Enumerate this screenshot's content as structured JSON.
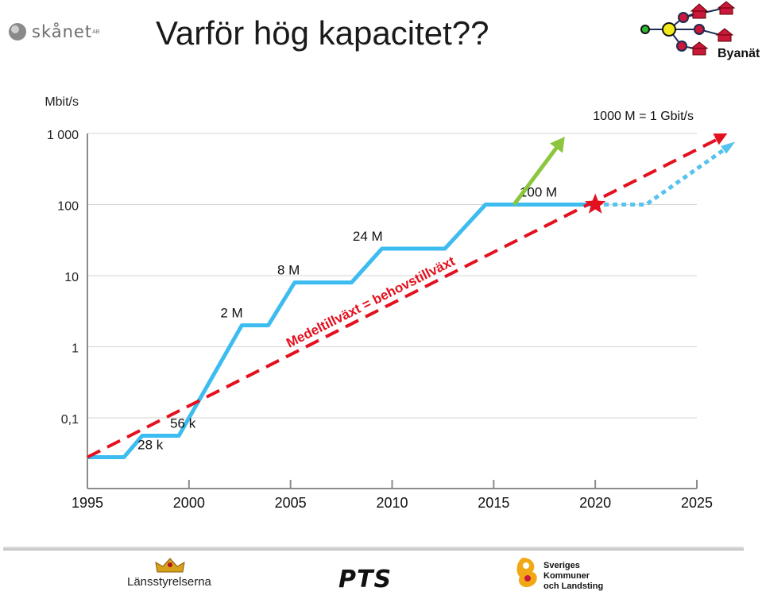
{
  "slide": {
    "title": "Varför hög kapacitet??",
    "logo_text": "skånet",
    "logo_sup": "AB",
    "byanat_label": "Byanät"
  },
  "chart_data": {
    "type": "line",
    "ylabel": "Mbit/s",
    "yscale": "log",
    "ylim": [
      0.03,
      1000
    ],
    "xlim": [
      1995,
      2026
    ],
    "y_ticks": [
      {
        "value": 1000,
        "label": "1 000"
      },
      {
        "value": 100,
        "label": "100"
      },
      {
        "value": 10,
        "label": "10"
      },
      {
        "value": 1,
        "label": "1"
      },
      {
        "value": 0.1,
        "label": "0,1"
      }
    ],
    "x_ticks": [
      {
        "value": 1995,
        "label": "1995"
      },
      {
        "value": 2000,
        "label": "2000"
      },
      {
        "value": 2005,
        "label": "2005"
      },
      {
        "value": 2010,
        "label": "2010"
      },
      {
        "value": 2015,
        "label": "2015"
      },
      {
        "value": 2020,
        "label": "2020"
      },
      {
        "value": 2025,
        "label": "2025"
      }
    ],
    "annotations": {
      "gbit_note": "1000 M = 1 Gbit/s",
      "trend_label": "Medeltillväxt = behovstillväxt"
    },
    "series": [
      {
        "style": "solid",
        "color": "#3dbcf0",
        "points": [
          {
            "x": 1995,
            "y": 0.028
          },
          {
            "x": 1996.8,
            "y": 0.028
          },
          {
            "x": 1997.7,
            "y": 0.056
          },
          {
            "x": 1999.5,
            "y": 0.056
          },
          {
            "x": 2002.6,
            "y": 2
          },
          {
            "x": 2003.9,
            "y": 2
          },
          {
            "x": 2005.2,
            "y": 8
          },
          {
            "x": 2008,
            "y": 8
          },
          {
            "x": 2009.5,
            "y": 24
          },
          {
            "x": 2012.6,
            "y": 24
          },
          {
            "x": 2014.6,
            "y": 100
          },
          {
            "x": 2020,
            "y": 100
          }
        ],
        "labels": [
          {
            "x": 1998.1,
            "y": 0.028,
            "text": "28 k"
          },
          {
            "x": 1999.7,
            "y": 0.056,
            "text": "56 k"
          },
          {
            "x": 2002.1,
            "y": 2,
            "text": "2 M"
          },
          {
            "x": 2004.9,
            "y": 8,
            "text": "8 M"
          },
          {
            "x": 2008.8,
            "y": 24,
            "text": "24 M"
          },
          {
            "x": 2017.2,
            "y": 100,
            "text": "100 M"
          }
        ]
      },
      {
        "style": "dotted",
        "color": "#56c2ee",
        "points": [
          {
            "x": 2020,
            "y": 100
          },
          {
            "x": 2022.5,
            "y": 100
          },
          {
            "x": 2026.7,
            "y": 700
          }
        ]
      },
      {
        "style": "dashed",
        "color": "#e3101e",
        "points": [
          {
            "x": 1995,
            "y": 0.028
          },
          {
            "x": 2026.5,
            "y": 1000
          }
        ]
      },
      {
        "style": "arrow",
        "color": "#8cc63e",
        "points": [
          {
            "x": 2016,
            "y": 100
          },
          {
            "x": 2018.5,
            "y": 900
          }
        ]
      }
    ],
    "markers": [
      {
        "type": "star",
        "x": 2020,
        "y": 100,
        "color": "#e3101e"
      }
    ]
  },
  "footer": {
    "lansstyrelserna": "Länsstyrelserna",
    "pts": "PTS",
    "skl_lines": [
      "Sveriges",
      "Kommuner",
      "och Landsting"
    ]
  }
}
